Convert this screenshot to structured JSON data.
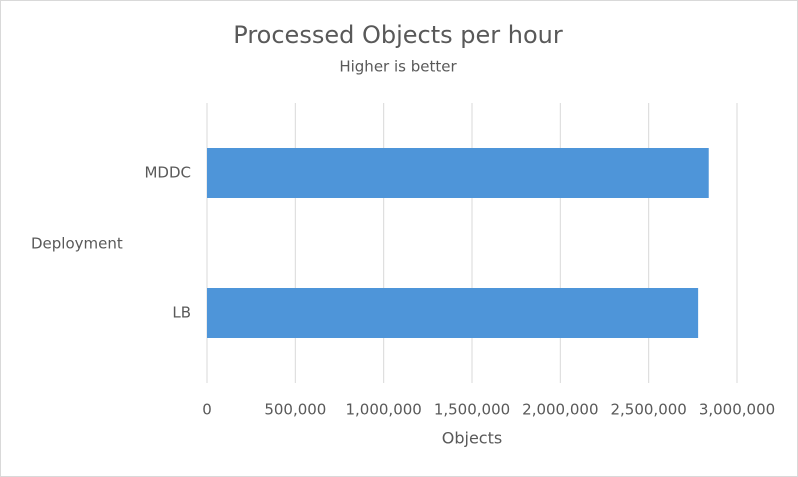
{
  "chart_data": {
    "type": "hbar",
    "title": "Processed Objects per hour",
    "subtitle": "Higher is better",
    "y_label": "Deployment",
    "x_label": "Objects",
    "categories": [
      "MDDC",
      "LB"
    ],
    "values": [
      2840000,
      2780000
    ],
    "color": "#4e95d9",
    "xlim": [
      0,
      3000000
    ],
    "xticks": [
      0,
      {
        "value": 500000,
        "label": "500,000"
      },
      {
        "value": 1000000,
        "label": "1,000,000"
      },
      {
        "value": 1500000,
        "label": "1,500,000"
      },
      {
        "value": 2000000,
        "label": "2,000,000"
      },
      {
        "value": 2500000,
        "label": "2,500,000"
      },
      {
        "value": 3000000,
        "label": "3,000,000"
      }
    ],
    "grid": true
  }
}
